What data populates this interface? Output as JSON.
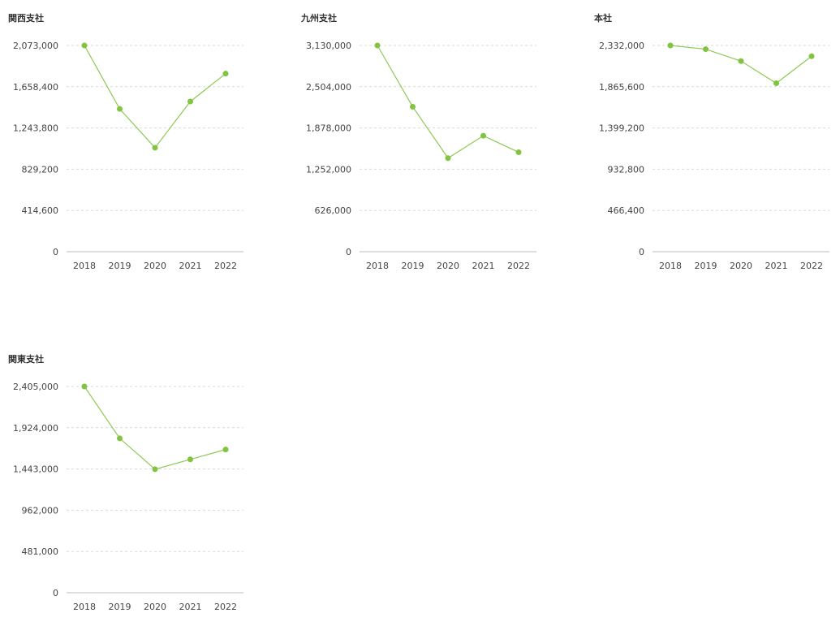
{
  "colors": {
    "series": "#8dc955",
    "dot": "#82c341"
  },
  "chart_data": [
    {
      "type": "line",
      "title": "関西支社",
      "categories": [
        "2018",
        "2019",
        "2020",
        "2021",
        "2022"
      ],
      "values": [
        2073000,
        1435000,
        1045000,
        1510000,
        1790000
      ],
      "yticks": [
        "0",
        "414,600",
        "829,200",
        "1,243,800",
        "1,658,400",
        "2,073,000"
      ],
      "ylim": [
        0,
        2073000
      ],
      "grid": true
    },
    {
      "type": "line",
      "title": "九州支社",
      "categories": [
        "2018",
        "2019",
        "2020",
        "2021",
        "2022"
      ],
      "values": [
        3130000,
        2200000,
        1420000,
        1760000,
        1510000
      ],
      "yticks": [
        "0",
        "626,000",
        "1,252,000",
        "1,878,000",
        "2,504,000",
        "3,130,000"
      ],
      "ylim": [
        0,
        3130000
      ],
      "grid": true
    },
    {
      "type": "line",
      "title": "本社",
      "categories": [
        "2018",
        "2019",
        "2020",
        "2021",
        "2022"
      ],
      "values": [
        2332000,
        2290000,
        2155000,
        1905000,
        2210000
      ],
      "yticks": [
        "0",
        "466,400",
        "932,800",
        "1,399,200",
        "1,865,600",
        "2,332,000"
      ],
      "ylim": [
        0,
        2332000
      ],
      "grid": true
    },
    {
      "type": "line",
      "title": "関東支社",
      "categories": [
        "2018",
        "2019",
        "2020",
        "2021",
        "2022"
      ],
      "values": [
        2405000,
        1800000,
        1440000,
        1555000,
        1670000
      ],
      "yticks": [
        "0",
        "481,000",
        "962,000",
        "1,443,000",
        "1,924,000",
        "2,405,000"
      ],
      "ylim": [
        0,
        2405000
      ],
      "grid": true
    }
  ]
}
